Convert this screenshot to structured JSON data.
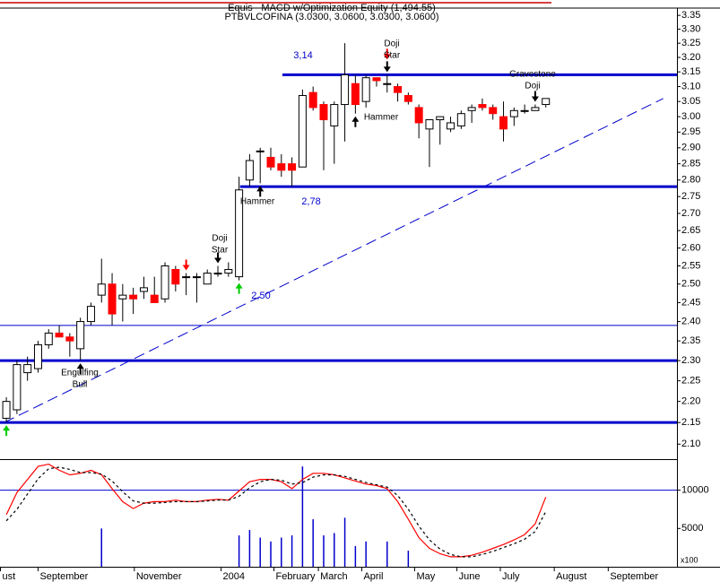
{
  "chart_data": [
    {
      "type": "candlestick",
      "title": "Equis - MACD  w/Optimization Equity (1,494.55)",
      "subtitle": "PTBVLCOFINA (3.0300, 3.0600, 3.0300, 3.0600)",
      "x": [
        0,
        1,
        2,
        3,
        4,
        5,
        6,
        7,
        8,
        9,
        10,
        11,
        12,
        13,
        14,
        15,
        16,
        17,
        18,
        19,
        20,
        21,
        22,
        23,
        24,
        25,
        26,
        27,
        28,
        29,
        30,
        31,
        32,
        33,
        34,
        35,
        36,
        37,
        38,
        39,
        40,
        41,
        42,
        43,
        44,
        45,
        46,
        47,
        48,
        49,
        50,
        51
      ],
      "open": [
        2.16,
        2.18,
        2.27,
        2.28,
        2.34,
        2.37,
        2.36,
        2.33,
        2.4,
        2.47,
        2.5,
        2.46,
        2.47,
        2.48,
        2.47,
        2.46,
        2.54,
        2.52,
        2.52,
        2.5,
        2.53,
        2.53,
        2.52,
        2.8,
        2.89,
        2.87,
        2.85,
        2.85,
        2.84,
        3.08,
        3.04,
        2.97,
        3.04,
        3.11,
        3.05,
        3.13,
        3.11,
        3.1,
        3.07,
        3.03,
        2.96,
        2.99,
        2.96,
        2.97,
        3.02,
        3.04,
        3.03,
        3.0,
        3.0,
        3.02,
        3.02,
        3.04
      ],
      "high": [
        2.21,
        2.3,
        2.31,
        2.35,
        2.38,
        2.39,
        2.37,
        2.41,
        2.45,
        2.57,
        2.53,
        2.5,
        2.49,
        2.52,
        2.52,
        2.56,
        2.55,
        2.53,
        2.53,
        2.54,
        2.55,
        2.56,
        2.81,
        2.88,
        2.9,
        2.9,
        2.88,
        2.87,
        3.09,
        3.1,
        3.05,
        3.05,
        3.25,
        3.14,
        3.14,
        3.13,
        3.14,
        3.11,
        3.08,
        3.04,
        2.99,
        3.0,
        3.0,
        3.02,
        3.04,
        3.06,
        3.04,
        3.05,
        3.03,
        3.04,
        3.04,
        3.06
      ],
      "low": [
        2.15,
        2.17,
        2.25,
        2.27,
        2.33,
        2.36,
        2.31,
        2.3,
        2.39,
        2.45,
        2.39,
        2.4,
        2.42,
        2.46,
        2.45,
        2.45,
        2.48,
        2.47,
        2.45,
        2.5,
        2.52,
        2.52,
        2.51,
        2.78,
        2.79,
        2.83,
        2.81,
        2.78,
        2.84,
        3.02,
        2.83,
        2.85,
        2.92,
        3.01,
        3.03,
        3.1,
        3.08,
        3.05,
        3.04,
        2.93,
        2.84,
        2.91,
        2.95,
        2.96,
        2.98,
        3.02,
        2.99,
        2.92,
        2.97,
        3.01,
        3.02,
        3.03
      ],
      "close": [
        2.2,
        2.29,
        2.29,
        2.34,
        2.37,
        2.36,
        2.35,
        2.4,
        2.44,
        2.5,
        2.42,
        2.47,
        2.46,
        2.49,
        2.45,
        2.55,
        2.5,
        2.52,
        2.52,
        2.53,
        2.53,
        2.54,
        2.77,
        2.86,
        2.89,
        2.84,
        2.83,
        2.83,
        3.07,
        3.03,
        2.99,
        3.04,
        3.14,
        3.04,
        3.13,
        3.12,
        3.11,
        3.08,
        3.05,
        2.98,
        2.99,
        3.0,
        2.98,
        3.01,
        3.03,
        3.03,
        3.01,
        2.96,
        3.02,
        3.02,
        3.03,
        3.06
      ],
      "up_color": "#ffffff",
      "down_color": "#ff0000",
      "outline_color": "#000000",
      "log_scale": true,
      "ylim": [
        2.07,
        3.38
      ],
      "yticks": [
        {
          "value": 2.1,
          "label": "2.10"
        },
        2.15,
        {
          "value": 2.2,
          "label": "2.20"
        },
        2.25,
        {
          "value": 2.3,
          "label": "2.30"
        },
        2.35,
        {
          "value": 2.4,
          "label": "2.40"
        },
        2.45,
        {
          "value": 2.5,
          "label": "2.50"
        },
        2.55,
        {
          "value": 2.6,
          "label": "2.60"
        },
        2.65,
        {
          "value": 2.7,
          "label": "2.70"
        },
        2.75,
        {
          "value": 2.8,
          "label": "2.80"
        },
        2.85,
        {
          "value": 2.9,
          "label": "2.90"
        },
        2.95,
        {
          "value": 3,
          "label": "3.00"
        },
        3.05,
        {
          "value": 3.1,
          "label": "3.10"
        },
        3.15,
        {
          "value": 3.2,
          "label": "3.20"
        },
        3.25,
        {
          "value": 3.3,
          "label": "3.30"
        },
        3.35
      ],
      "xlim": [
        -0.6,
        63.4
      ],
      "xticks": [
        {
          "value": -0.6,
          "label": "ust"
        },
        {
          "value": 3,
          "label": "September"
        },
        {
          "value": 12.1,
          "label": "November"
        },
        {
          "value": 20.3,
          "label": "2004"
        },
        {
          "value": 25.3,
          "label": "February"
        },
        {
          "value": 29.5,
          "label": "March"
        },
        {
          "value": 33.6,
          "label": "April"
        },
        {
          "value": 38.6,
          "label": "May"
        },
        {
          "value": 42.6,
          "label": "June"
        },
        {
          "value": 46.7,
          "label": "July"
        },
        {
          "value": 51.8,
          "label": "August"
        },
        {
          "value": 56.9,
          "label": "September"
        }
      ],
      "levels": [
        {
          "value": 3.14,
          "start": 26.1,
          "width": 3
        },
        {
          "value": 2.78,
          "start": 22.1,
          "width": 3
        },
        {
          "value": 2.39,
          "start": -0.6,
          "width": 1
        },
        {
          "value": 2.3,
          "start": -0.6,
          "width": 3
        },
        {
          "value": 2.15,
          "start": -0.6,
          "width": 3
        }
      ],
      "level_color": "#0000cc",
      "trendline": {
        "x": [
          -0.2,
          62.1
        ],
        "y": [
          2.15,
          3.06
        ],
        "color": "#0000cc"
      },
      "annotations": [
        {
          "lines": [
            "3,14"
          ]
        },
        {
          "lines": [
            "2,78"
          ]
        },
        {
          "lines": [
            "2,50"
          ]
        },
        {
          "lines": [
            "Doji",
            "Star"
          ]
        },
        {
          "lines": [
            "Hammer"
          ]
        },
        {
          "lines": [
            "Hammer"
          ]
        },
        {
          "lines": [
            "Doji",
            "Star"
          ]
        },
        {
          "lines": [
            "Engulfing",
            "Bull"
          ]
        },
        {
          "lines": [
            "Gravestone",
            "Doji"
          ]
        }
      ],
      "signals": [
        {
          "index": 0,
          "dir": "up",
          "color": "#00cc00"
        },
        {
          "index": 7,
          "dir": "up",
          "color": "#000000"
        },
        {
          "index": 17,
          "dir": "down",
          "color": "#ff0000"
        },
        {
          "index": 20,
          "dir": "down",
          "color": "#000000"
        },
        {
          "index": 22,
          "dir": "up",
          "color": "#00cc00"
        },
        {
          "index": 24,
          "dir": "up",
          "color": "#000000"
        },
        {
          "index": 33,
          "dir": "up",
          "color": "#000000"
        },
        {
          "index": 36,
          "dir": "down",
          "color": "#000000"
        },
        {
          "index": 36,
          "dir": "down",
          "color": "#ff0000"
        },
        {
          "index": 50,
          "dir": "down",
          "color": "#000000"
        }
      ]
    },
    {
      "type": "indicator",
      "ylim": [
        0,
        13700
      ],
      "yticks": [
        5000,
        10000
      ],
      "unit_label": "x100",
      "levels": [
        10000
      ],
      "level_color": "#0000cc",
      "series": [
        {
          "kind": "bar",
          "color": "#0000cc",
          "values": [
            null,
            null,
            null,
            null,
            null,
            null,
            null,
            null,
            null,
            5000,
            null,
            null,
            null,
            null,
            null,
            null,
            null,
            null,
            null,
            null,
            null,
            null,
            4100,
            4800,
            3800,
            3300,
            3800,
            4100,
            13100,
            6200,
            4100,
            4400,
            6400,
            2700,
            3300,
            null,
            3300,
            null,
            2100,
            null,
            null,
            null,
            null,
            null,
            null,
            null,
            null,
            null,
            null,
            null,
            null,
            null
          ]
        },
        {
          "kind": "line",
          "color": "#ff0000",
          "values": [
            6800,
            9700,
            11400,
            13100,
            13400,
            12600,
            12000,
            12200,
            12600,
            12000,
            10200,
            8500,
            7600,
            8300,
            8500,
            8500,
            8700,
            8500,
            8500,
            8700,
            8800,
            8700,
            9900,
            11100,
            11400,
            11400,
            11100,
            10200,
            11400,
            12200,
            12200,
            12000,
            11600,
            11200,
            10800,
            10600,
            10200,
            8500,
            6200,
            3800,
            2400,
            1700,
            1300,
            1300,
            1500,
            1900,
            2400,
            2900,
            3500,
            4200,
            5600,
            9100
          ]
        },
        {
          "kind": "line",
          "color": "#000000",
          "dash": true,
          "values": [
            6000,
            7500,
            9500,
            11500,
            12800,
            13000,
            12700,
            12300,
            12300,
            12100,
            11200,
            9800,
            8600,
            8300,
            8300,
            8400,
            8500,
            8500,
            8500,
            8600,
            8700,
            8700,
            9200,
            10300,
            11100,
            11400,
            11300,
            10800,
            11000,
            11700,
            12000,
            12000,
            11800,
            11400,
            11000,
            10700,
            10400,
            9300,
            7500,
            5300,
            3500,
            2300,
            1600,
            1300,
            1300,
            1600,
            2000,
            2500,
            3000,
            3600,
            4600,
            7200
          ]
        }
      ]
    }
  ]
}
